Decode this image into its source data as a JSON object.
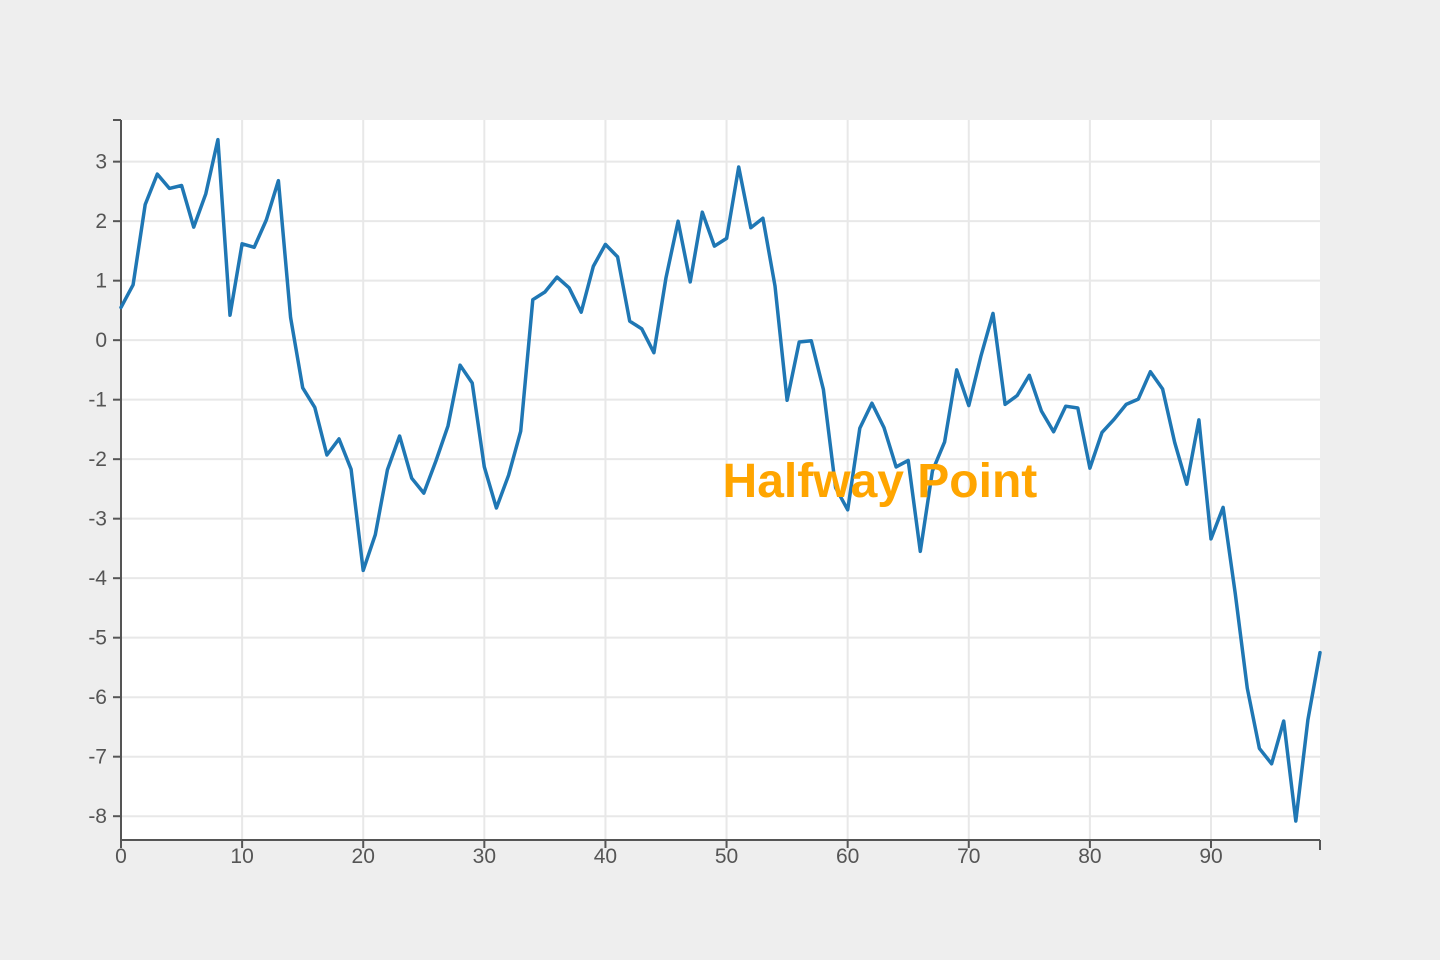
{
  "colors": {
    "page_background": "#eeeeee",
    "plot_background": "#ffffff",
    "grid": "#e8e8e8",
    "axis": "#555555",
    "line": "#1f77b4",
    "annotation": "#ffa500"
  },
  "chart_data": {
    "type": "line",
    "title": "",
    "xlabel": "",
    "ylabel": "",
    "xlim": [
      0,
      99
    ],
    "ylim": [
      -8.4,
      3.7
    ],
    "grid": true,
    "legend": "none",
    "x_ticks": [
      0,
      10,
      20,
      30,
      40,
      50,
      60,
      70,
      80,
      90
    ],
    "y_ticks": [
      3,
      2,
      1,
      0,
      -1,
      -2,
      -3,
      -4,
      -5,
      -6,
      -7,
      -8
    ],
    "x_tick_labels": [
      "0",
      "10",
      "20",
      "30",
      "40",
      "50",
      "60",
      "70",
      "80",
      "90"
    ],
    "y_tick_labels": [
      "3",
      "2",
      "1",
      "0",
      "-1",
      "-2",
      "-3",
      "-4",
      "-5",
      "-6",
      "-7",
      "-8"
    ],
    "series": [
      {
        "x": [
          0,
          1,
          2,
          3,
          4,
          5,
          6,
          7,
          8,
          9,
          10,
          11,
          12,
          13,
          14,
          15,
          16,
          17,
          18,
          19,
          20,
          21,
          22,
          23,
          24,
          25,
          26,
          27,
          28,
          29,
          30,
          31,
          32,
          33,
          34,
          35,
          36,
          37,
          38,
          39,
          40,
          41,
          42,
          43,
          44,
          45,
          46,
          47,
          48,
          49,
          50,
          51,
          52,
          53,
          54,
          55,
          56,
          57,
          58,
          59,
          60,
          61,
          62,
          63,
          64,
          65,
          66,
          67,
          68,
          69,
          70,
          71,
          72,
          73,
          74,
          75,
          76,
          77,
          78,
          79,
          80,
          81,
          82,
          83,
          84,
          85,
          86,
          87,
          88,
          89,
          90,
          91,
          92,
          93,
          94,
          95,
          96,
          97,
          98,
          99
        ],
        "values": [
          0.55,
          0.93,
          2.28,
          2.79,
          2.55,
          2.6,
          1.9,
          2.46,
          3.37,
          0.42,
          1.62,
          1.56,
          2.02,
          2.68,
          0.38,
          -0.8,
          -1.13,
          -1.93,
          -1.66,
          -2.17,
          -3.87,
          -3.27,
          -2.18,
          -1.61,
          -2.32,
          -2.57,
          -2.03,
          -1.44,
          -0.42,
          -0.72,
          -2.13,
          -2.82,
          -2.27,
          -1.53,
          0.68,
          0.81,
          1.06,
          0.88,
          0.47,
          1.24,
          1.61,
          1.4,
          0.32,
          0.19,
          -0.21,
          1.05,
          2.0,
          0.98,
          2.15,
          1.58,
          1.71,
          2.91,
          1.89,
          2.05,
          0.91,
          -1.01,
          -0.03,
          -0.01,
          -0.83,
          -2.48,
          -2.85,
          -1.48,
          -1.06,
          -1.47,
          -2.13,
          -2.02,
          -3.55,
          -2.2,
          -1.71,
          -0.5,
          -1.1,
          -0.27,
          0.45,
          -1.08,
          -0.93,
          -0.59,
          -1.19,
          -1.54,
          -1.11,
          -1.14,
          -2.15,
          -1.55,
          -1.33,
          -1.08,
          -0.99,
          -0.53,
          -0.82,
          -1.72,
          -2.42,
          -1.34,
          -3.34,
          -2.81,
          -4.25,
          -5.85,
          -6.86,
          -7.12,
          -6.4,
          -8.08,
          -6.38,
          -5.25
        ]
      }
    ],
    "annotations": [
      {
        "text": "Halfway Point",
        "x": 50,
        "y": -2.37
      }
    ]
  }
}
